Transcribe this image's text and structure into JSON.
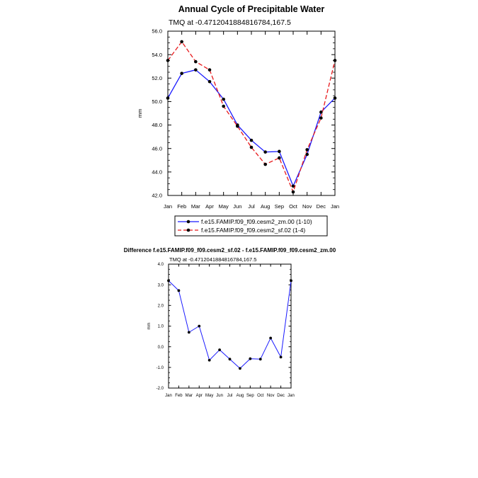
{
  "chart_data": [
    {
      "type": "line",
      "title": "Annual Cycle of Precipitable Water",
      "subtitle": "TMQ at -0.4712041884816784,167.5",
      "xlabel": "",
      "ylabel": "mm",
      "ylim": [
        42.0,
        56.0
      ],
      "yticks": [
        "42.0",
        "44.0",
        "46.0",
        "48.0",
        "50.0",
        "52.0",
        "54.0",
        "56.0"
      ],
      "ytick_values": [
        42,
        44,
        46,
        48,
        50,
        52,
        54,
        56
      ],
      "categories": [
        "Jan",
        "Feb",
        "Mar",
        "Apr",
        "May",
        "Jun",
        "Jul",
        "Aug",
        "Sep",
        "Oct",
        "Nov",
        "Dec",
        "Jan"
      ],
      "series": [
        {
          "name": "f.e15.FAMIP.f09_f09.cesm2_zm.00 (1-10)",
          "color": "#1a1aff",
          "dash": "solid",
          "values": [
            50.3,
            52.4,
            52.7,
            51.7,
            50.2,
            48.0,
            46.7,
            45.7,
            45.75,
            42.8,
            45.5,
            49.1,
            50.3
          ]
        },
        {
          "name": "f.e15.FAMIP.f09_f09.cesm2_sf.02 (1-4)",
          "color": "#e8191c",
          "dash": "dashed",
          "values": [
            53.5,
            55.1,
            53.4,
            52.7,
            49.6,
            47.9,
            46.1,
            44.65,
            45.2,
            42.3,
            45.9,
            48.6,
            53.5
          ]
        }
      ],
      "legend_position": "bottom"
    },
    {
      "type": "line",
      "title": "Difference f.e15.FAMIP.f09_f09.cesm2_sf.02 - f.e15.FAMIP.f09_f09.cesm2_zm.00",
      "subtitle": "TMQ at -0.4712041884816784,167.5",
      "xlabel": "",
      "ylabel": "mm",
      "ylim": [
        -2.0,
        4.0
      ],
      "yticks": [
        "-2.0",
        "-1.0",
        "0.0",
        "1.0",
        "2.0",
        "3.0",
        "4.0"
      ],
      "ytick_values": [
        -2,
        -1,
        0,
        1,
        2,
        3,
        4
      ],
      "categories": [
        "Jan",
        "Feb",
        "Mar",
        "Apr",
        "May",
        "Jun",
        "Jul",
        "Aug",
        "Sep",
        "Oct",
        "Nov",
        "Dec",
        "Jan"
      ],
      "series": [
        {
          "name": "difference",
          "color": "#1a1aff",
          "dash": "solid",
          "values": [
            3.2,
            2.72,
            0.7,
            1.0,
            -0.65,
            -0.15,
            -0.6,
            -1.05,
            -0.58,
            -0.6,
            0.42,
            -0.5,
            3.2
          ]
        }
      ]
    }
  ]
}
